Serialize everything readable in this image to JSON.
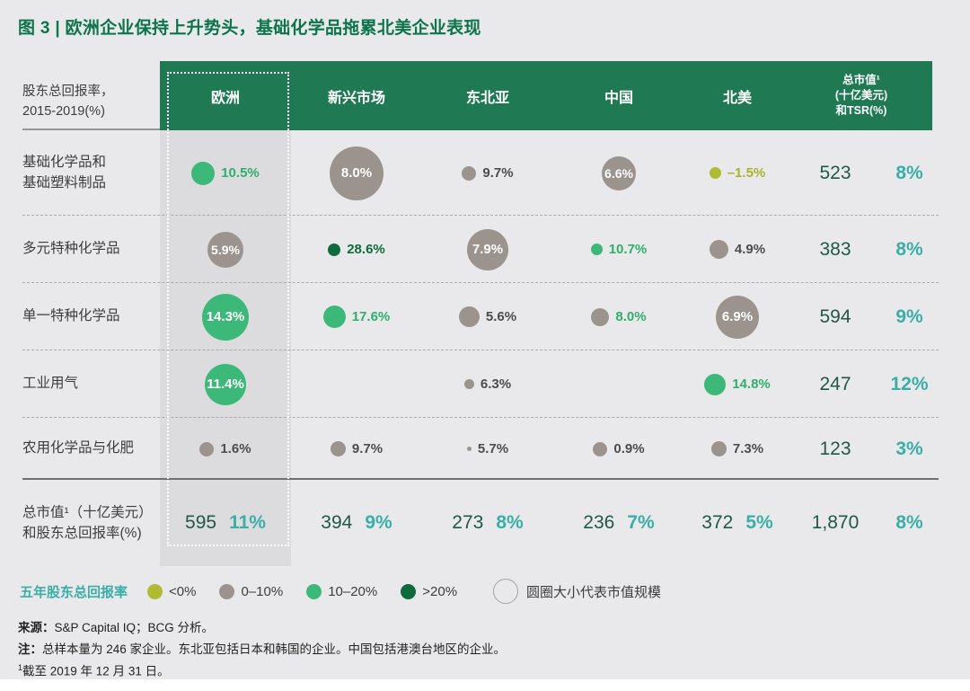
{
  "chart_data": {
    "type": "bubble-matrix",
    "title": "图 3 | 欧洲企业保持上升势头，基础化学品拖累北美企业表现",
    "axis_label_line1": "股东总回报率，",
    "axis_label_line2": "2015-2019(%)",
    "columns": [
      "欧洲",
      "新兴市场",
      "东北亚",
      "中国",
      "北美"
    ],
    "highlighted_column": "欧洲",
    "cap_header_lines": [
      "总市值¹",
      "(十亿美元)",
      "和TSR(%)"
    ],
    "band_colors": {
      "neg": "#aebc33",
      "low": "#9b948e",
      "mid": "#3cb878",
      "high": "#0e6b3e"
    },
    "label_colors": {
      "neg": "#a4b42c",
      "low": "#4c4c4e",
      "mid": "#2fae6d",
      "high": "#0e6b3e"
    },
    "accent_colors": {
      "header_green": "#1f7a53",
      "title_green": "#0c744c",
      "tsr_teal": "#3aaea7",
      "cap_dark_green": "#20584a"
    },
    "size_encoding": "圆圈大小代表市值规模",
    "rows": [
      {
        "label_lines": [
          "基础化学品和",
          "基础塑料制品"
        ],
        "cells": [
          {
            "v": "10.5%",
            "band": "mid",
            "d": 26,
            "inside": false
          },
          {
            "v": "8.0%",
            "band": "low",
            "d": 60,
            "inside": true
          },
          {
            "v": "9.7%",
            "band": "low",
            "d": 16,
            "inside": false
          },
          {
            "v": "6.6%",
            "band": "low",
            "d": 38,
            "inside": true
          },
          {
            "v": "–1.5%",
            "band": "neg",
            "d": 13,
            "inside": false
          }
        ],
        "cap": "523",
        "tsr": "8%"
      },
      {
        "label_lines": [
          "多元特种化学品"
        ],
        "cells": [
          {
            "v": "5.9%",
            "band": "low",
            "d": 40,
            "inside": true
          },
          {
            "v": "28.6%",
            "band": "high",
            "d": 14,
            "inside": false
          },
          {
            "v": "7.9%",
            "band": "low",
            "d": 46,
            "inside": true
          },
          {
            "v": "10.7%",
            "band": "mid",
            "d": 13,
            "inside": false
          },
          {
            "v": "4.9%",
            "band": "low",
            "d": 21,
            "inside": false
          }
        ],
        "cap": "383",
        "tsr": "8%"
      },
      {
        "label_lines": [
          "单一特种化学品"
        ],
        "cells": [
          {
            "v": "14.3%",
            "band": "mid",
            "d": 52,
            "inside": true
          },
          {
            "v": "17.6%",
            "band": "mid",
            "d": 25,
            "inside": false
          },
          {
            "v": "5.6%",
            "band": "low",
            "d": 23,
            "inside": false
          },
          {
            "v": "8.0%",
            "band": "low",
            "d": 20,
            "inside": false,
            "label_band": "mid"
          },
          {
            "v": "6.9%",
            "band": "low",
            "d": 48,
            "inside": true
          }
        ],
        "cap": "594",
        "tsr": "9%"
      },
      {
        "label_lines": [
          "工业用气"
        ],
        "cells": [
          {
            "v": "11.4%",
            "band": "mid",
            "d": 46,
            "inside": true
          },
          null,
          {
            "v": "6.3%",
            "band": "low",
            "d": 11,
            "inside": false
          },
          null,
          {
            "v": "14.8%",
            "band": "mid",
            "d": 24,
            "inside": false
          }
        ],
        "cap": "247",
        "tsr": "12%"
      },
      {
        "label_lines": [
          "农用化学品与化肥"
        ],
        "cells": [
          {
            "v": "1.6%",
            "band": "low",
            "d": 16,
            "inside": false
          },
          {
            "v": "9.7%",
            "band": "low",
            "d": 17,
            "inside": false
          },
          {
            "v": "5.7%",
            "band": "low",
            "d": 5,
            "inside": false
          },
          {
            "v": "0.9%",
            "band": "low",
            "d": 16,
            "inside": false
          },
          {
            "v": "7.3%",
            "band": "low",
            "d": 17,
            "inside": false
          }
        ],
        "cap": "123",
        "tsr": "3%"
      }
    ],
    "totals": {
      "label_lines": [
        "总市值¹（十亿美元）",
        "和股东总回报率(%)"
      ],
      "region_values": [
        {
          "cap": "595",
          "tsr": "11%"
        },
        {
          "cap": "394",
          "tsr": "9%"
        },
        {
          "cap": "273",
          "tsr": "8%"
        },
        {
          "cap": "236",
          "tsr": "7%"
        },
        {
          "cap": "372",
          "tsr": "5%"
        }
      ],
      "overall_cap": "1,870",
      "overall_tsr": "8%"
    },
    "legend": {
      "title": "五年股东总回报率",
      "items": [
        {
          "label": "<0%",
          "band": "neg"
        },
        {
          "label": "0–10%",
          "band": "low"
        },
        {
          "label": "10–20%",
          "band": "mid"
        },
        {
          "label": ">20%",
          "band": "high"
        }
      ],
      "size_note": "圆圈大小代表市值规模"
    },
    "footnotes": [
      {
        "label": "来源",
        "text": "S&P Capital IQ；BCG 分析。"
      },
      {
        "label": "注",
        "text": "总样本量为 246 家企业。东北亚包括日本和韩国的企业。中国包括港澳台地区的企业。"
      },
      {
        "sup": "1",
        "text": "截至 2019 年 12 月 31 日。"
      }
    ]
  }
}
